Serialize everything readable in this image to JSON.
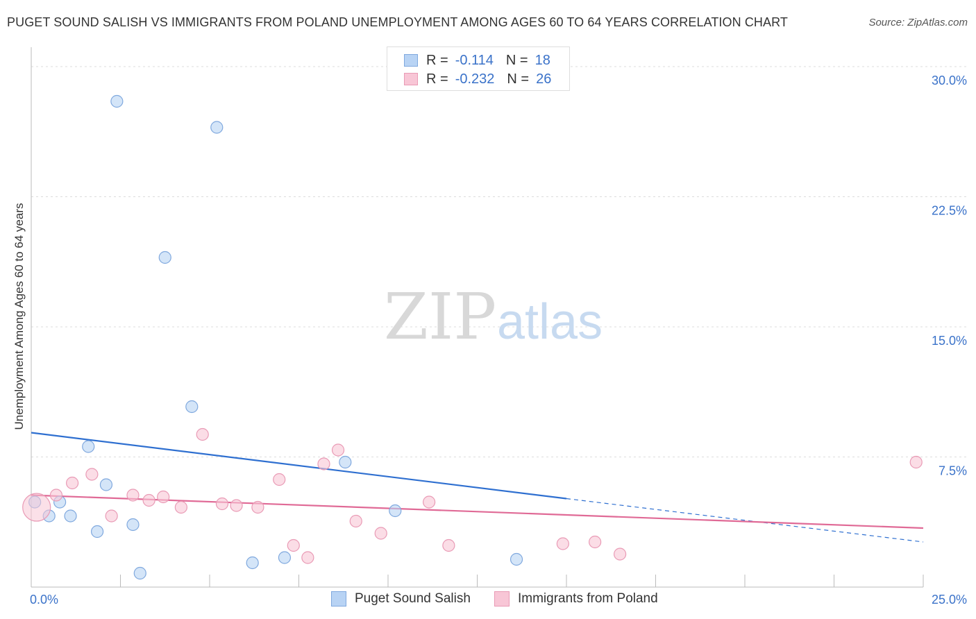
{
  "chart_data": {
    "type": "scatter",
    "title": "PUGET SOUND SALISH VS IMMIGRANTS FROM POLAND UNEMPLOYMENT AMONG AGES 60 TO 64 YEARS CORRELATION CHART",
    "source": "Source: ZipAtlas.com",
    "ylabel": "Unemployment Among Ages 60 to 64 years",
    "xlim": [
      0,
      25
    ],
    "ylim": [
      0,
      30.5
    ],
    "x_tick_labels": [
      "0.0%",
      "25.0%"
    ],
    "y_ticks": [
      7.5,
      15.0,
      22.5,
      30.0
    ],
    "y_tick_labels": [
      "7.5%",
      "15.0%",
      "22.5%",
      "30.0%"
    ],
    "watermark": {
      "zip": "ZIP",
      "atlas": "atlas"
    },
    "stats": [
      {
        "r_label": "R =",
        "r": "-0.114",
        "n_label": "N =",
        "n": "18"
      },
      {
        "r_label": "R =",
        "r": "-0.232",
        "n_label": "N =",
        "n": "26"
      }
    ],
    "series": [
      {
        "name": "Puget Sound Salish",
        "color": "#7fa8de",
        "fill": "#b8d3f4",
        "line_color": "#2e6fd0",
        "trend": {
          "x0": 0,
          "y0": 8.9,
          "x1": 15.0,
          "y1": 5.1,
          "dash_to_x": 25,
          "dash_to_y": 2.6
        },
        "points": [
          [
            0.1,
            4.9
          ],
          [
            0.5,
            4.1
          ],
          [
            0.8,
            4.9
          ],
          [
            1.1,
            4.1
          ],
          [
            1.6,
            8.1
          ],
          [
            1.85,
            3.2
          ],
          [
            2.1,
            5.9
          ],
          [
            2.4,
            28.0
          ],
          [
            2.85,
            3.6
          ],
          [
            3.05,
            0.8
          ],
          [
            3.75,
            19.0
          ],
          [
            4.5,
            10.4
          ],
          [
            5.2,
            26.5
          ],
          [
            6.2,
            1.4
          ],
          [
            7.1,
            1.7
          ],
          [
            8.8,
            7.2
          ],
          [
            10.2,
            4.4
          ],
          [
            13.6,
            1.6
          ]
        ]
      },
      {
        "name": "Immigrants from Poland",
        "color": "#e99ab5",
        "fill": "#f8c6d6",
        "line_color": "#e06a96",
        "trend": {
          "x0": 0,
          "y0": 5.3,
          "x1": 25,
          "y1": 3.4
        },
        "points": [
          [
            0.15,
            4.6
          ],
          [
            0.7,
            5.3
          ],
          [
            1.15,
            6.0
          ],
          [
            1.7,
            6.5
          ],
          [
            2.25,
            4.1
          ],
          [
            2.85,
            5.3
          ],
          [
            3.3,
            5.0
          ],
          [
            3.7,
            5.2
          ],
          [
            4.2,
            4.6
          ],
          [
            4.8,
            8.8
          ],
          [
            5.35,
            4.8
          ],
          [
            5.75,
            4.7
          ],
          [
            6.35,
            4.6
          ],
          [
            6.95,
            6.2
          ],
          [
            7.35,
            2.4
          ],
          [
            7.75,
            1.7
          ],
          [
            8.2,
            7.1
          ],
          [
            8.6,
            7.9
          ],
          [
            9.1,
            3.8
          ],
          [
            9.8,
            3.1
          ],
          [
            11.15,
            4.9
          ],
          [
            11.7,
            2.4
          ],
          [
            14.9,
            2.5
          ],
          [
            15.8,
            2.6
          ],
          [
            16.5,
            1.9
          ],
          [
            24.8,
            7.2
          ]
        ]
      }
    ]
  }
}
